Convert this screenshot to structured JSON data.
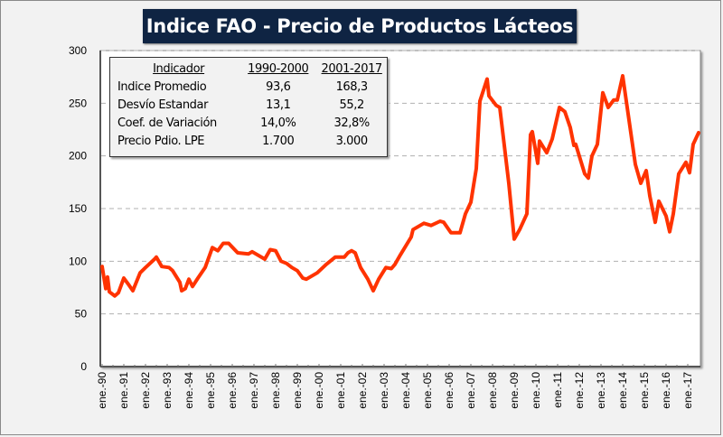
{
  "chart_data": {
    "type": "line",
    "title": "Indice FAO - Precio de Productos Lácteos",
    "xlabel": "",
    "ylabel": "",
    "ylim": [
      0,
      300
    ],
    "yticks": [
      "0",
      "50",
      "100",
      "150",
      "200",
      "250",
      "300"
    ],
    "xtick_labels": [
      "ene.-90",
      "ene.-91",
      "ene.-92",
      "ene.-93",
      "ene.-94",
      "ene.-95",
      "ene.-96",
      "ene.-97",
      "ene.-98",
      "ene.-99",
      "ene.-00",
      "ene.-01",
      "ene.-02",
      "ene.-03",
      "ene.-04",
      "ene.-05",
      "ene.-06",
      "ene.-07",
      "ene.-08",
      "ene.-09",
      "ene.-10",
      "ene.-11",
      "ene.-12",
      "ene.-13",
      "ene.-14",
      "ene.-15",
      "ene.-16",
      "ene.-17"
    ],
    "grid": "horizontal dashed",
    "line_color": "#ff3300",
    "series": [
      {
        "points": [
          [
            "1990-01",
            95
          ],
          [
            "1990-03",
            74
          ],
          [
            "1990-04",
            85
          ],
          [
            "1990-05",
            71
          ],
          [
            "1990-08",
            67
          ],
          [
            "1990-10",
            70
          ],
          [
            "1991-01",
            84
          ],
          [
            "1991-04",
            77
          ],
          [
            "1991-06",
            72
          ],
          [
            "1991-10",
            89
          ],
          [
            "1992-01",
            94
          ],
          [
            "1992-06",
            102
          ],
          [
            "1992-07",
            104
          ],
          [
            "1992-10",
            95
          ],
          [
            "1993-02",
            94
          ],
          [
            "1993-04",
            91
          ],
          [
            "1993-08",
            80
          ],
          [
            "1993-09",
            72
          ],
          [
            "1993-11",
            74
          ],
          [
            "1994-01",
            83
          ],
          [
            "1994-03",
            76
          ],
          [
            "1994-06",
            84
          ],
          [
            "1994-10",
            94
          ],
          [
            "1995-02",
            113
          ],
          [
            "1995-05",
            110
          ],
          [
            "1995-08",
            117
          ],
          [
            "1995-11",
            117
          ],
          [
            "1996-04",
            108
          ],
          [
            "1996-10",
            107
          ],
          [
            "1996-12",
            109
          ],
          [
            "1997-07",
            102
          ],
          [
            "1997-10",
            111
          ],
          [
            "1998-01",
            110
          ],
          [
            "1998-04",
            100
          ],
          [
            "1998-07",
            98
          ],
          [
            "1998-10",
            94
          ],
          [
            "1999-01",
            91
          ],
          [
            "1999-04",
            84
          ],
          [
            "1999-06",
            83
          ],
          [
            "1999-12",
            89
          ],
          [
            "2000-05",
            97
          ],
          [
            "2000-10",
            104
          ],
          [
            "2001-03",
            104
          ],
          [
            "2001-05",
            108
          ],
          [
            "2001-07",
            110
          ],
          [
            "2001-09",
            108
          ],
          [
            "2001-12",
            94
          ],
          [
            "2002-04",
            83
          ],
          [
            "2002-07",
            72
          ],
          [
            "2002-10",
            83
          ],
          [
            "2003-02",
            94
          ],
          [
            "2003-05",
            93
          ],
          [
            "2003-07",
            97
          ],
          [
            "2003-10",
            106
          ],
          [
            "2004-04",
            123
          ],
          [
            "2004-05",
            130
          ],
          [
            "2004-11",
            136
          ],
          [
            "2005-03",
            134
          ],
          [
            "2005-08",
            138
          ],
          [
            "2005-10",
            137
          ],
          [
            "2006-02",
            127
          ],
          [
            "2006-07",
            127
          ],
          [
            "2006-10",
            145
          ],
          [
            "2007-01",
            156
          ],
          [
            "2007-04",
            188
          ],
          [
            "2007-06",
            252
          ],
          [
            "2007-10",
            273
          ],
          [
            "2007-11",
            257
          ],
          [
            "2008-03",
            248
          ],
          [
            "2008-05",
            246
          ],
          [
            "2008-10",
            174
          ],
          [
            "2009-01",
            121
          ],
          [
            "2009-04",
            130
          ],
          [
            "2009-08",
            145
          ],
          [
            "2009-10",
            220
          ],
          [
            "2009-11",
            223
          ],
          [
            "2010-02",
            193
          ],
          [
            "2010-03",
            214
          ],
          [
            "2010-07",
            203
          ],
          [
            "2010-10",
            216
          ],
          [
            "2011-02",
            246
          ],
          [
            "2011-05",
            242
          ],
          [
            "2011-08",
            227
          ],
          [
            "2011-10",
            210
          ],
          [
            "2011-11",
            211
          ],
          [
            "2012-04",
            183
          ],
          [
            "2012-06",
            179
          ],
          [
            "2012-08",
            200
          ],
          [
            "2012-11",
            211
          ],
          [
            "2013-02",
            260
          ],
          [
            "2013-05",
            246
          ],
          [
            "2013-08",
            253
          ],
          [
            "2013-10",
            253
          ],
          [
            "2014-01",
            276
          ],
          [
            "2014-04",
            240
          ],
          [
            "2014-08",
            192
          ],
          [
            "2014-11",
            174
          ],
          [
            "2015-02",
            186
          ],
          [
            "2015-04",
            162
          ],
          [
            "2015-07",
            137
          ],
          [
            "2015-09",
            157
          ],
          [
            "2016-01",
            143
          ],
          [
            "2016-03",
            128
          ],
          [
            "2016-05",
            145
          ],
          [
            "2016-08",
            183
          ],
          [
            "2016-12",
            194
          ],
          [
            "2017-02",
            184
          ],
          [
            "2017-04",
            211
          ],
          [
            "2017-07",
            222
          ]
        ]
      }
    ],
    "annotation_table": {
      "headers": [
        "Indicador",
        "1990-2000",
        "2001-2017"
      ],
      "rows": [
        [
          "Indice Promedio",
          "93,6",
          "168,3"
        ],
        [
          "Desvío Estandar",
          "13,1",
          "55,2"
        ],
        [
          "Coef. de Variación",
          "14,0%",
          "32,8%"
        ],
        [
          "Precio Pdio. LPE",
          "1.700",
          "3.000"
        ]
      ]
    }
  }
}
